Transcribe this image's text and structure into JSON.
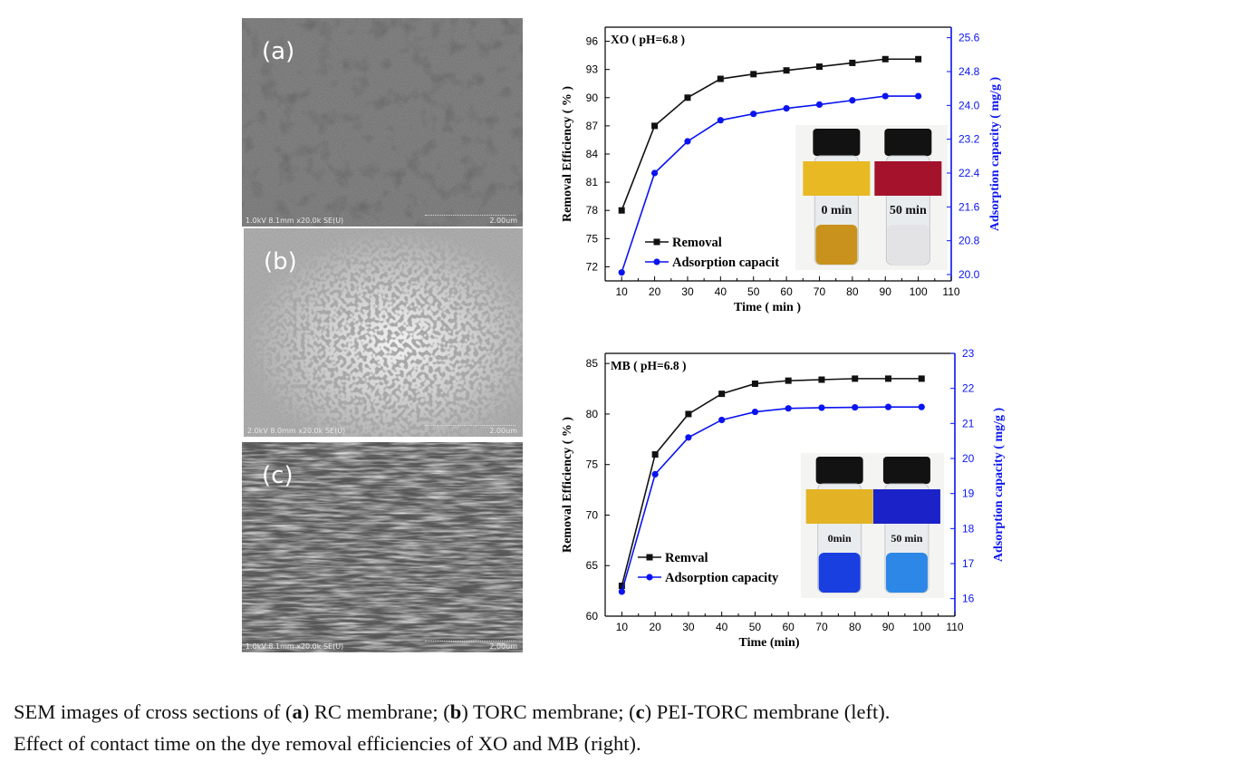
{
  "sem_panels": [
    {
      "label": "(a)",
      "info": "1.0kV 8.1mm x20.0k SE(U)",
      "scale": "2.00um"
    },
    {
      "label": "(b)",
      "info": "2.0kV 8.0mm x20.0k SE(U)",
      "scale": "2.00um"
    },
    {
      "label": "(c)",
      "info": "1.0kV 8.1mm x20.0k SE(U)",
      "scale": "2.00um"
    }
  ],
  "chart_data": [
    {
      "type": "line",
      "title": "XO ( pH=6.8 )",
      "xlabel": "Time ( min )",
      "ylabel": "Removal Efficiency ( % )",
      "y2label": "Adsorption capacity ( mg/g )",
      "xlim": [
        5,
        110
      ],
      "xticks": [
        "10",
        "20",
        "30",
        "40",
        "50",
        "60",
        "70",
        "80",
        "90",
        "100",
        "110"
      ],
      "ylim": [
        70.5,
        97.5
      ],
      "yticks": [
        "72",
        "75",
        "78",
        "81",
        "84",
        "87",
        "90",
        "93",
        "96"
      ],
      "y2lim": [
        19.85,
        25.85
      ],
      "y2ticks": [
        "20.0",
        "20.8",
        "21.6",
        "22.4",
        "23.2",
        "24.0",
        "24.8",
        "25.6"
      ],
      "x": [
        10,
        20,
        30,
        40,
        50,
        60,
        70,
        80,
        90,
        100
      ],
      "series": [
        {
          "name": "Removal",
          "axis": "left",
          "color": "#111111",
          "marker": "square",
          "values": [
            78.0,
            87.0,
            90.0,
            92.0,
            92.5,
            92.9,
            93.3,
            93.7,
            94.1,
            94.1
          ]
        },
        {
          "name": "Adsorption capacit",
          "axis": "right",
          "color": "#0a14f0",
          "marker": "circle",
          "values": [
            20.05,
            22.4,
            23.15,
            23.65,
            23.8,
            23.93,
            24.02,
            24.12,
            24.22,
            24.22
          ]
        }
      ],
      "legend_location": "bottom-left",
      "inset": {
        "left_label": "0 min",
        "right_label": "50 min",
        "left_liquid": "#c9921c",
        "right_liquid": "#e3e3e6",
        "left_strip": "#e8b923",
        "right_strip": "#a4122b"
      }
    },
    {
      "type": "line",
      "title": "MB ( pH=6.8 )",
      "xlabel": "Time (min)",
      "ylabel": "Removal Efficiency ( % )",
      "y2label": "Adsorption capacity ( mg/g )",
      "xlim": [
        5,
        110
      ],
      "xticks": [
        "10",
        "20",
        "30",
        "40",
        "50",
        "60",
        "70",
        "80",
        "90",
        "100",
        "110"
      ],
      "ylim": [
        60,
        86
      ],
      "yticks": [
        "60",
        "65",
        "70",
        "75",
        "80",
        "85"
      ],
      "y2lim": [
        15.5,
        23
      ],
      "y2ticks": [
        "16",
        "17",
        "18",
        "19",
        "20",
        "21",
        "22",
        "23"
      ],
      "x": [
        10,
        20,
        30,
        40,
        50,
        60,
        70,
        80,
        90,
        100
      ],
      "series": [
        {
          "name": "Remval",
          "axis": "left",
          "color": "#111111",
          "marker": "square",
          "values": [
            63.0,
            76.0,
            80.0,
            82.0,
            83.0,
            83.3,
            83.4,
            83.5,
            83.5,
            83.5
          ]
        },
        {
          "name": "Adsorption capacity",
          "axis": "right",
          "color": "#0a14f0",
          "marker": "circle",
          "values": [
            16.2,
            19.55,
            20.6,
            21.1,
            21.33,
            21.43,
            21.45,
            21.46,
            21.47,
            21.47
          ]
        }
      ],
      "legend_location": "bottom-left",
      "inset": {
        "left_label": "0min",
        "right_label": "50 min",
        "left_liquid": "#1a3fe0",
        "right_liquid": "#2c87e6",
        "left_strip": "#e3b325",
        "right_strip": "#1a22c8"
      }
    }
  ],
  "caption": {
    "line1_prefix": "SEM images of cross sections of (",
    "a": "a",
    "line1_mid1": ") RC membrane; (",
    "b": "b",
    "line1_mid2": ") TORC membrane; (",
    "c": "c",
    "line1_suffix": ") PEI-TORC membrane (left).",
    "line2": "Effect of contact time on the dye removal efficiencies of XO and MB (right)."
  }
}
